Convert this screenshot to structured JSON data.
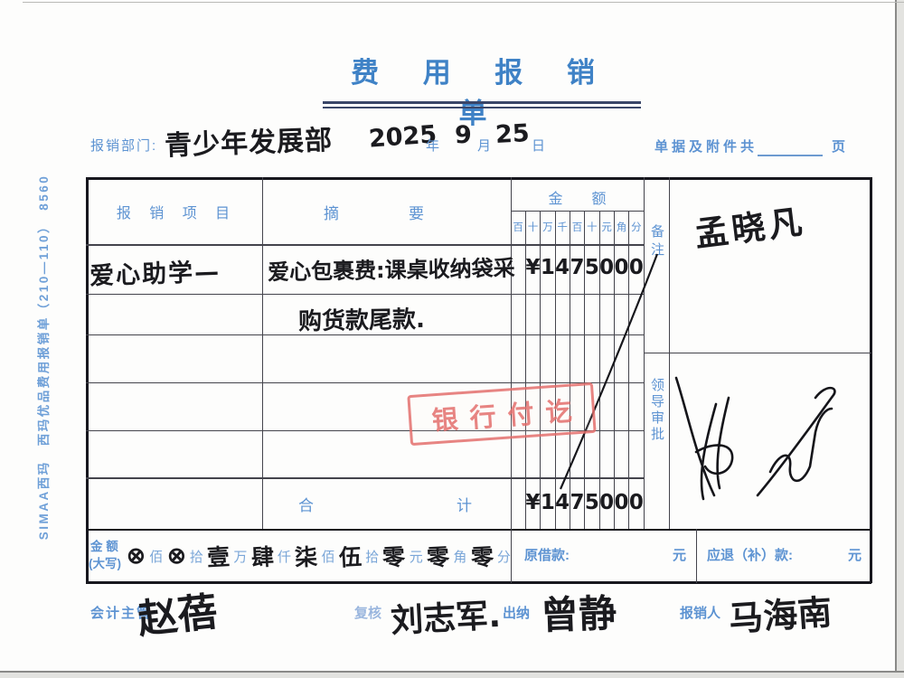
{
  "form": {
    "title": "费 用 报 销 单",
    "side_text": "SIMAA西玛　西玛优品费用报销单（210—110）　8560",
    "header": {
      "dept_label": "报销部门:",
      "dept_value": "青少年发展部",
      "date": {
        "year": "2025",
        "year_label": "年",
        "month": "9",
        "month_label": "月",
        "day": "25",
        "day_label": "日"
      },
      "attach_label": "单据及附件共",
      "attach_unit": "页"
    },
    "table": {
      "col_item": "报 销 项 目",
      "col_summary_1": "摘",
      "col_summary_2": "要",
      "col_amount": "金　　额",
      "digit_headers": [
        "百",
        "十",
        "万",
        "千",
        "百",
        "十",
        "元",
        "角",
        "分"
      ],
      "remark_label": "备注",
      "approval_label": "领导审批",
      "rows": [
        {
          "item": "爱心助学—",
          "summary": "爱心包裹费:课桌收纳袋采",
          "amount": [
            "",
            "¥",
            "1",
            "4",
            "7",
            "5",
            "0",
            "0",
            "0"
          ]
        },
        {
          "item": "",
          "summary": "购货款尾款.",
          "amount": [
            "",
            "",
            "",
            "",
            "",
            "",
            "",
            "",
            ""
          ]
        }
      ],
      "total_label_1": "合",
      "total_label_2": "计",
      "total_amount": [
        "",
        "¥",
        "1",
        "4",
        "7",
        "5",
        "0",
        "0",
        "0"
      ],
      "remark_signature": "孟晓凡"
    },
    "stamp": "银行付讫",
    "amount_words": {
      "label_line1": "金 额",
      "label_line2": "(大写)",
      "sequence": [
        {
          "type": "hand",
          "t": "⊗"
        },
        {
          "type": "print",
          "t": "佰"
        },
        {
          "type": "hand",
          "t": "⊗"
        },
        {
          "type": "print",
          "t": "拾"
        },
        {
          "type": "hand",
          "t": "壹"
        },
        {
          "type": "print",
          "t": "万"
        },
        {
          "type": "hand",
          "t": "肆"
        },
        {
          "type": "print",
          "t": "仟"
        },
        {
          "type": "hand",
          "t": "柒"
        },
        {
          "type": "print",
          "t": "佰"
        },
        {
          "type": "hand",
          "t": "伍"
        },
        {
          "type": "print",
          "t": "拾"
        },
        {
          "type": "hand",
          "t": "零"
        },
        {
          "type": "print",
          "t": "元"
        },
        {
          "type": "hand",
          "t": "零"
        },
        {
          "type": "print",
          "t": "角"
        },
        {
          "type": "hand",
          "t": "零"
        },
        {
          "type": "print",
          "t": "分"
        }
      ],
      "loan_label": "原借款:",
      "loan_unit": "元",
      "refund_label": "应退（补）款:",
      "refund_unit": "元"
    },
    "footer": {
      "accounting_label": "会计主管",
      "accounting_sig": "赵蓓",
      "review_label": "复核",
      "review_sig": "刘志军.",
      "cashier_label": "出纳",
      "cashier_sig": "曾静",
      "claimant_label": "报销人",
      "claimant_sig": "马海南"
    }
  }
}
